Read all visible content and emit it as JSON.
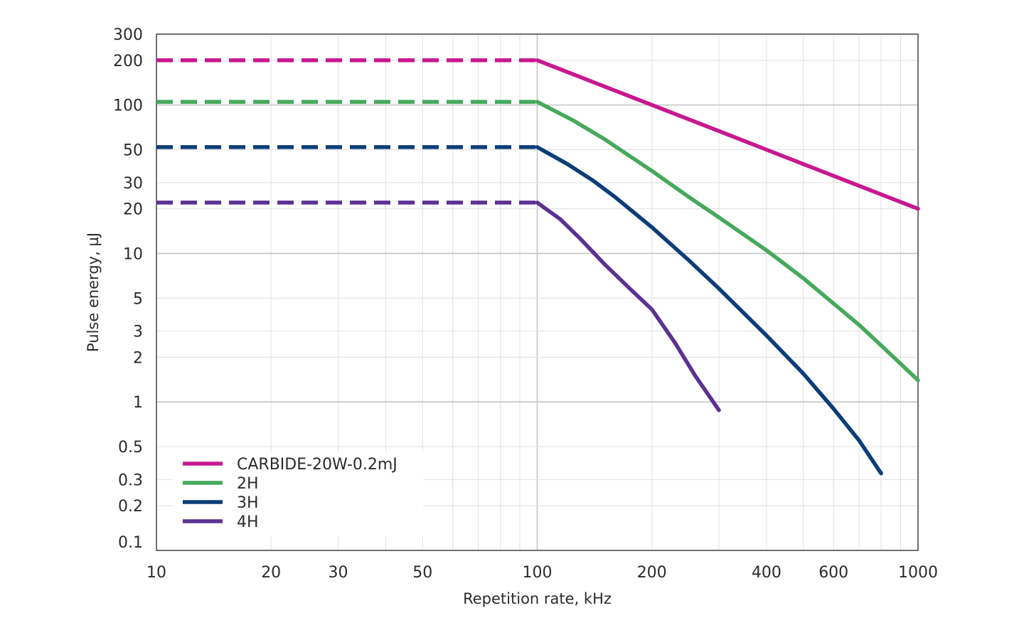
{
  "chart_data": {
    "type": "line",
    "xlabel": "Repetition rate, kHz",
    "ylabel": "Pulse energy, µJ",
    "xscale": "log",
    "yscale": "log",
    "xlim": [
      10,
      1000
    ],
    "ylim": [
      0.1,
      300
    ],
    "grid": true,
    "legend_position": "bottom-left",
    "x_ticks": [
      {
        "value": 10,
        "label": "10"
      },
      {
        "value": 20,
        "label": "20"
      },
      {
        "value": 30,
        "label": "30"
      },
      {
        "value": 50,
        "label": "50"
      },
      {
        "value": 100,
        "label": "100"
      },
      {
        "value": 200,
        "label": "200"
      },
      {
        "value": 400,
        "label": "400"
      },
      {
        "value": 600,
        "label": "600"
      },
      {
        "value": 1000,
        "label": "1000"
      }
    ],
    "x_gridlines": [
      10,
      20,
      30,
      40,
      50,
      60,
      70,
      80,
      90,
      100,
      200,
      300,
      400,
      500,
      600,
      700,
      800,
      900,
      1000
    ],
    "y_ticks": [
      {
        "value": 0.1,
        "label": "0.1"
      },
      {
        "value": 0.2,
        "label": "0.2"
      },
      {
        "value": 0.3,
        "label": "0.3"
      },
      {
        "value": 0.5,
        "label": "0.5"
      },
      {
        "value": 1,
        "label": "1"
      },
      {
        "value": 2,
        "label": "2"
      },
      {
        "value": 3,
        "label": "3"
      },
      {
        "value": 5,
        "label": "5"
      },
      {
        "value": 10,
        "label": "10"
      },
      {
        "value": 20,
        "label": "20"
      },
      {
        "value": 30,
        "label": "30"
      },
      {
        "value": 50,
        "label": "50"
      },
      {
        "value": 100,
        "label": "100"
      },
      {
        "value": 200,
        "label": "200"
      },
      {
        "value": 300,
        "label": "300"
      }
    ],
    "series": [
      {
        "name": "CARBIDE-20W-0.2mJ",
        "color": "#c8188f",
        "dashed_segment": [
          [
            10,
            200
          ],
          [
            100,
            200
          ]
        ],
        "solid_segment": [
          [
            100,
            200
          ],
          [
            200,
            100
          ],
          [
            300,
            66.7
          ],
          [
            400,
            50
          ],
          [
            600,
            33.3
          ],
          [
            1000,
            20
          ]
        ]
      },
      {
        "name": "2H",
        "color": "#46a95c",
        "dashed_segment": [
          [
            10,
            105
          ],
          [
            100,
            105
          ]
        ],
        "solid_segment": [
          [
            100,
            105
          ],
          [
            125,
            78
          ],
          [
            150,
            59
          ],
          [
            200,
            36
          ],
          [
            250,
            24
          ],
          [
            300,
            17.5
          ],
          [
            400,
            10.5
          ],
          [
            500,
            6.8
          ],
          [
            600,
            4.6
          ],
          [
            700,
            3.3
          ],
          [
            800,
            2.4
          ],
          [
            1000,
            1.4
          ]
        ]
      },
      {
        "name": "3H",
        "color": "#0c3d78",
        "dashed_segment": [
          [
            10,
            52
          ],
          [
            100,
            52
          ]
        ],
        "solid_segment": [
          [
            100,
            52
          ],
          [
            120,
            40
          ],
          [
            140,
            31
          ],
          [
            160,
            24
          ],
          [
            200,
            15
          ],
          [
            250,
            9
          ],
          [
            300,
            5.8
          ],
          [
            400,
            2.8
          ],
          [
            500,
            1.55
          ],
          [
            600,
            0.9
          ],
          [
            700,
            0.55
          ],
          [
            800,
            0.33
          ]
        ]
      },
      {
        "name": "4H",
        "color": "#5b3292",
        "dashed_segment": [
          [
            10,
            22
          ],
          [
            100,
            22
          ]
        ],
        "solid_segment": [
          [
            100,
            22
          ],
          [
            115,
            17
          ],
          [
            130,
            12.5
          ],
          [
            150,
            8.5
          ],
          [
            175,
            5.8
          ],
          [
            200,
            4.2
          ],
          [
            230,
            2.5
          ],
          [
            260,
            1.5
          ],
          [
            300,
            0.88
          ]
        ]
      }
    ]
  }
}
